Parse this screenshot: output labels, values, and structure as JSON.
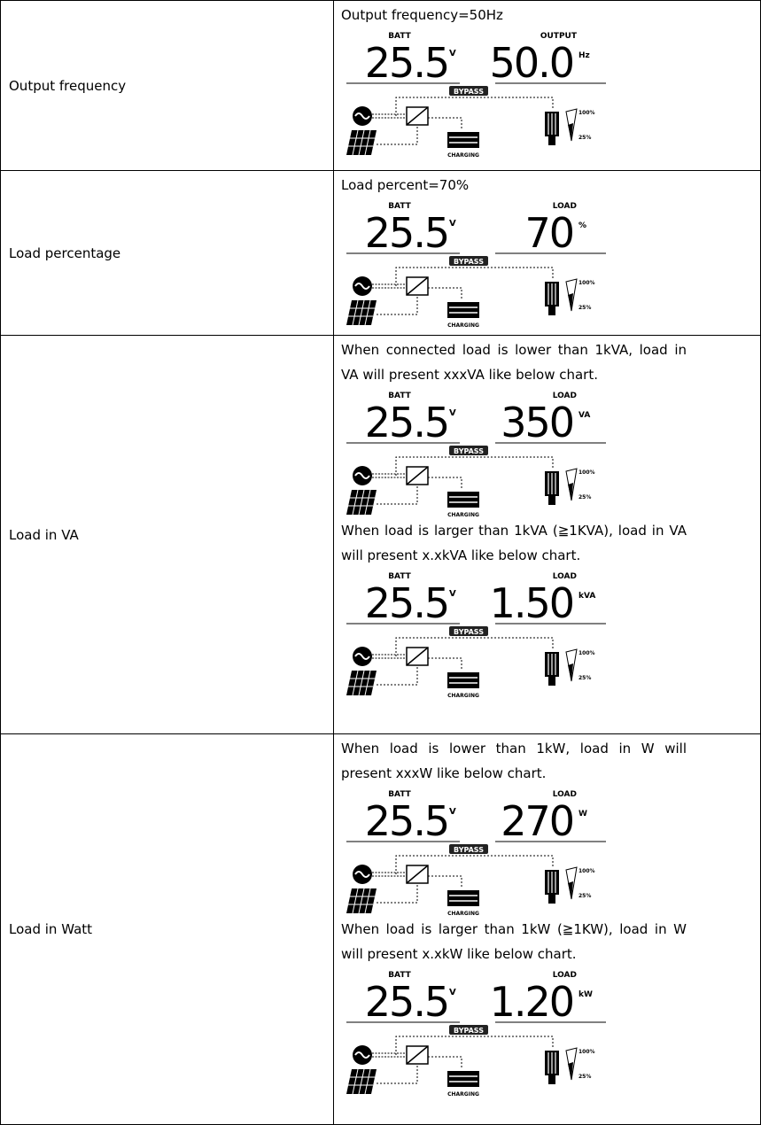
{
  "table": {
    "rows": [
      {
        "label": "Output frequency",
        "content": [
          {
            "text": "Output frequency=50Hz"
          },
          {
            "lcd": {
              "left_label": "BATT",
              "left_value": "25.5",
              "left_unit": "V",
              "right_label": "OUTPUT",
              "right_value": "50.0",
              "right_unit": "Hz",
              "bypass": "BYPASS",
              "charging": "CHARGING",
              "high": "100%",
              "low": "25%"
            }
          }
        ]
      },
      {
        "label": "Load percentage",
        "content": [
          {
            "text": "Load percent=70%"
          },
          {
            "lcd": {
              "left_label": "BATT",
              "left_value": "25.5",
              "left_unit": "V",
              "right_label": "LOAD",
              "right_value": "70",
              "right_unit": "%",
              "bypass": "BYPASS",
              "charging": "CHARGING",
              "high": "100%",
              "low": "25%"
            }
          }
        ]
      },
      {
        "label": "Load in VA",
        "content": [
          {
            "text": "When connected load is lower than 1kVA, load in VA will present xxxVA like below chart."
          },
          {
            "lcd": {
              "left_label": "BATT",
              "left_value": "25.5",
              "left_unit": "V",
              "right_label": "LOAD",
              "right_value": "350",
              "right_unit": "VA",
              "bypass": "BYPASS",
              "charging": "CHARGING",
              "high": "100%",
              "low": "25%"
            }
          },
          {
            "text": "When load is larger than 1kVA (≧1KVA), load in VA will present x.xkVA like below chart."
          },
          {
            "lcd": {
              "left_label": "BATT",
              "left_value": "25.5",
              "left_unit": "V",
              "right_label": "LOAD",
              "right_value": "1.50",
              "right_unit": "kVA",
              "bypass": "BYPASS",
              "charging": "CHARGING",
              "high": "100%",
              "low": "25%"
            }
          }
        ]
      },
      {
        "label": "Load in Watt",
        "content": [
          {
            "text": "When load is lower than 1kW, load in W will present xxxW like below chart."
          },
          {
            "lcd": {
              "left_label": "BATT",
              "left_value": "25.5",
              "left_unit": "V",
              "right_label": "LOAD",
              "right_value": "270",
              "right_unit": "W",
              "bypass": "BYPASS",
              "charging": "CHARGING",
              "high": "100%",
              "low": "25%"
            }
          },
          {
            "text": "When load is larger than 1kW (≧1KW), load in W will present x.xkW like below chart."
          },
          {
            "lcd": {
              "left_label": "BATT",
              "left_value": "25.5",
              "left_unit": "V",
              "right_label": "LOAD",
              "right_value": "1.20",
              "right_unit": "kW",
              "bypass": "BYPASS",
              "charging": "CHARGING",
              "high": "100%",
              "low": "25%"
            }
          }
        ]
      }
    ]
  }
}
